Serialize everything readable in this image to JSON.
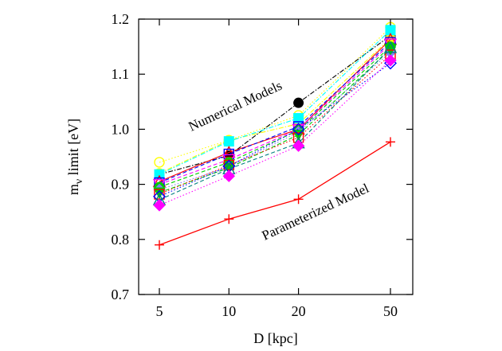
{
  "chart_data": {
    "type": "line",
    "xlabel": "D [kpc]",
    "ylabel_main": "m",
    "ylabel_sub": "ν",
    "ylabel_rest": " limit [eV]",
    "x_scale": "log",
    "x": [
      5,
      10,
      20,
      50
    ],
    "x_tick_labels": [
      "5",
      "10",
      "20",
      "50"
    ],
    "ylim": [
      0.7,
      1.2
    ],
    "y_ticks": [
      0.7,
      0.8,
      0.9,
      1.0,
      1.1,
      1.2
    ],
    "y_tick_labels": [
      "0.7",
      "0.8",
      "0.9",
      "1.0",
      "1.1",
      "1.2"
    ],
    "grid": false,
    "annotations": [
      "Numerical Models",
      "Parameterized Model"
    ],
    "series": [
      {
        "values": [
          0.79,
          0.837,
          0.873,
          0.977
        ],
        "color": "#ff0000",
        "marker": "plus",
        "line": "solid"
      },
      {
        "values": [
          0.94,
          0.98,
          1.025,
          1.185
        ],
        "color": "#ffff00",
        "marker": "circle-open",
        "line": "dotted"
      },
      {
        "values": [
          0.918,
          0.952,
          1.048,
          1.17
        ],
        "color": "#000000",
        "marker": "circle",
        "line": "dashdot"
      },
      {
        "values": [
          0.92,
          0.98,
          1.01,
          1.165
        ],
        "color": "#ffff00",
        "marker": "circle",
        "line": "dashdot"
      },
      {
        "values": [
          0.918,
          0.978,
          1.02,
          1.18
        ],
        "color": "#00ffff",
        "marker": "square",
        "line": "dashdot"
      },
      {
        "values": [
          0.905,
          0.958,
          1.0,
          1.163
        ],
        "color": "#ff0000",
        "marker": "triangle-open",
        "line": "solid"
      },
      {
        "values": [
          0.903,
          0.955,
          1.005,
          1.158
        ],
        "color": "#0000ff",
        "marker": "square-open",
        "line": "dashed"
      },
      {
        "values": [
          0.9,
          0.945,
          1.0,
          1.155
        ],
        "color": "#ff00ff",
        "marker": "triangle-down-open",
        "line": "dashed"
      },
      {
        "values": [
          0.895,
          0.94,
          0.998,
          1.15
        ],
        "color": "#00cc00",
        "marker": "circle",
        "line": "dashed"
      },
      {
        "values": [
          0.89,
          0.932,
          0.995,
          1.14
        ],
        "color": "#8080ff",
        "marker": "diamond",
        "line": "dotted"
      },
      {
        "values": [
          0.885,
          0.93,
          0.99,
          1.145
        ],
        "color": "#00cc00",
        "marker": "triangle-down",
        "line": "dashed"
      },
      {
        "values": [
          0.882,
          0.935,
          0.985,
          1.135
        ],
        "color": "#ff0000",
        "marker": "square-open",
        "line": "dotted"
      },
      {
        "values": [
          0.878,
          0.933,
          1.0,
          1.12
        ],
        "color": "#0000ff",
        "marker": "diamond-open",
        "line": "dotted"
      },
      {
        "values": [
          0.872,
          0.928,
          0.975,
          1.148
        ],
        "color": "#008080",
        "marker": "triangle-open",
        "line": "dashed"
      },
      {
        "values": [
          0.862,
          0.915,
          0.97,
          1.125
        ],
        "color": "#ff00ff",
        "marker": "diamond",
        "line": "dotted"
      }
    ]
  }
}
